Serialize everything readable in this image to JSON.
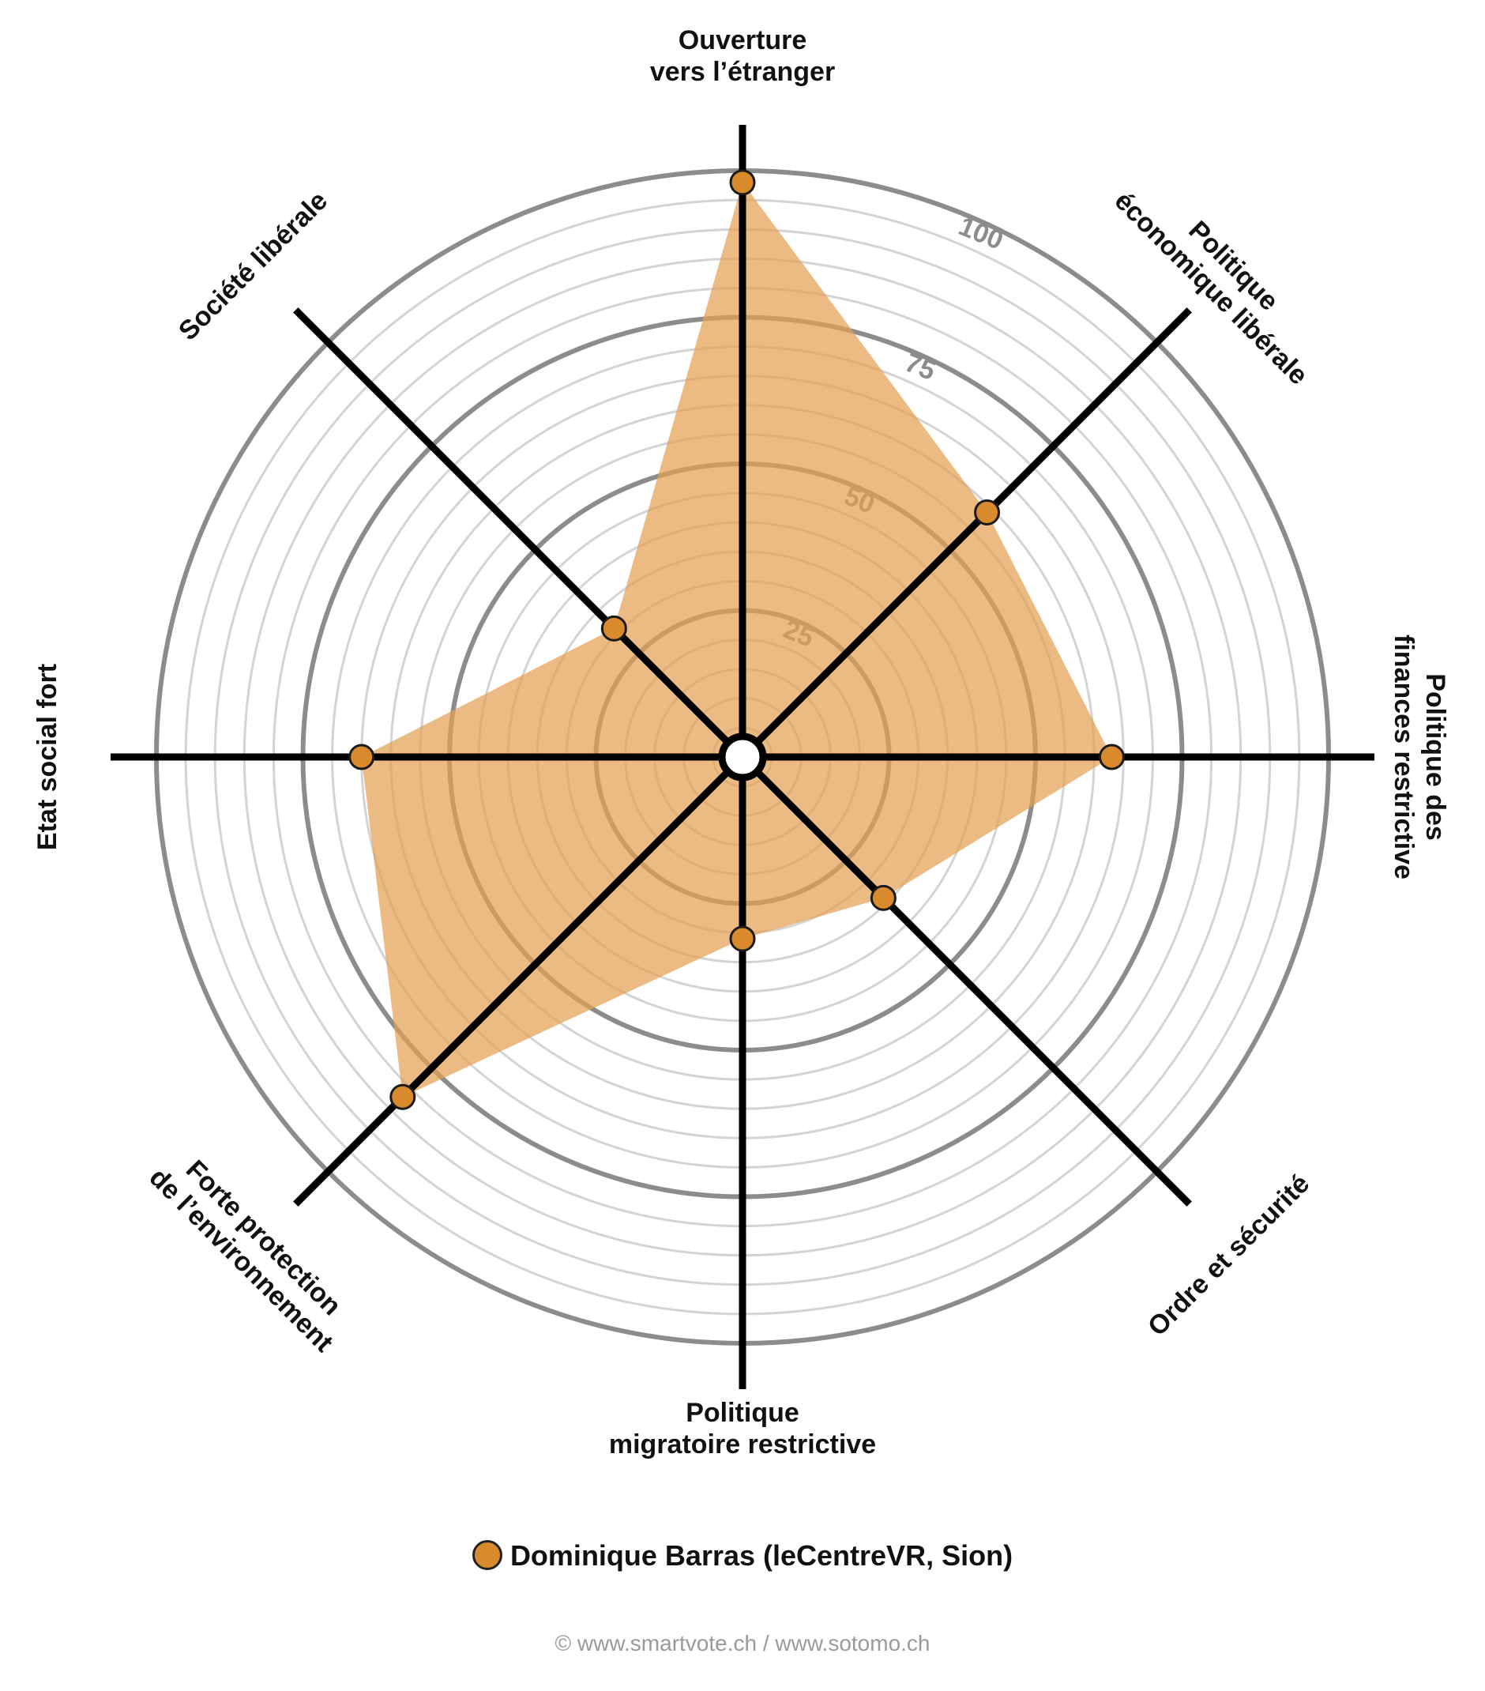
{
  "chart_data": {
    "type": "radar",
    "axes": [
      "Ouverture\nvers l’étranger",
      "Politique\néconomique libérale",
      "Politique des\nfinances restrictive",
      "Ordre et sécurité",
      "Politique\nmigratoire restrictive",
      "Forte protection\nde l’environnement",
      "Etat social fort",
      "Société libérale"
    ],
    "ring_ticks": [
      "25",
      "50",
      "75",
      "100"
    ],
    "rlim": [
      0,
      100
    ],
    "series": [
      {
        "name": "Dominique Barras (leCentreVR, Sion)",
        "values": [
          98,
          59,
          63,
          34,
          31,
          82,
          65,
          31
        ]
      }
    ],
    "colors": {
      "fill": "#e4a053",
      "point": "#d98a2c",
      "axis": "#000000",
      "ring_major": "#8c8c8c",
      "ring_minor": "#d4d4d4"
    },
    "legend_position": "bottom"
  },
  "legend": {
    "label": "Dominique Barras (leCentreVR, Sion)"
  },
  "footer": {
    "text": "© www.smartvote.ch / www.sotomo.ch"
  }
}
